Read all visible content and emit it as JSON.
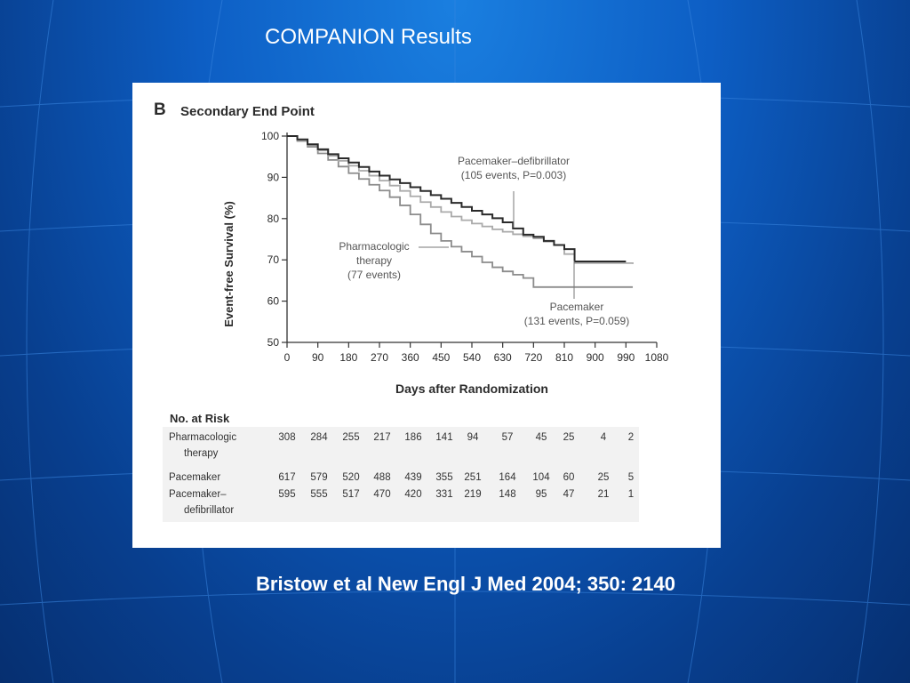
{
  "slide": {
    "title": "COMPANION Results",
    "citation": "Bristow et al New Engl J Med 2004; 350: 2140"
  },
  "colors": {
    "background": "#0d5ec4",
    "grid_lines": "#3a86e0",
    "pacemaker_defibrillator": "#2a2a2a",
    "pacemaker": "#aaaaaa",
    "pharmacologic": "#8c8c8c"
  },
  "chart_data": {
    "type": "line",
    "panel_label": "B",
    "title": "Secondary End Point",
    "xlabel": "Days after Randomization",
    "ylabel": "Event-free Survival (%)",
    "xlim": [
      0,
      1080
    ],
    "ylim": [
      50,
      100
    ],
    "x_ticks": [
      0,
      90,
      180,
      270,
      360,
      450,
      540,
      630,
      720,
      810,
      900,
      990,
      1080
    ],
    "y_ticks": [
      50,
      60,
      70,
      80,
      90,
      100
    ],
    "series": [
      {
        "name": "Pacemaker–defibrillator",
        "color": "#2a2a2a",
        "x": [
          0,
          30,
          60,
          90,
          120,
          150,
          180,
          210,
          240,
          270,
          300,
          330,
          360,
          390,
          420,
          450,
          480,
          510,
          540,
          570,
          600,
          630,
          660,
          690,
          720,
          750,
          780,
          810,
          840,
          870,
          900,
          930,
          960,
          990
        ],
        "y": [
          100,
          99.2,
          98.0,
          96.8,
          95.6,
          94.6,
          93.6,
          92.5,
          91.4,
          90.4,
          89.5,
          88.6,
          87.6,
          86.7,
          85.7,
          84.8,
          83.8,
          82.8,
          81.9,
          81.0,
          80.1,
          79.1,
          77.6,
          76.1,
          75.6,
          74.6,
          73.6,
          72.6,
          69.6,
          69.6,
          69.6,
          69.6,
          69.6,
          69.6
        ]
      },
      {
        "name": "Pacemaker",
        "color": "#aaaaaa",
        "x": [
          0,
          30,
          60,
          90,
          120,
          150,
          180,
          210,
          240,
          270,
          300,
          330,
          360,
          390,
          420,
          450,
          480,
          510,
          540,
          570,
          600,
          630,
          660,
          690,
          720,
          750,
          780,
          810,
          840,
          870,
          900,
          930,
          960,
          990,
          1010
        ],
        "y": [
          100,
          99.0,
          97.8,
          96.5,
          95.2,
          94.0,
          92.8,
          91.6,
          90.4,
          89.2,
          88.0,
          86.7,
          85.4,
          84.0,
          82.8,
          81.6,
          80.5,
          79.6,
          78.8,
          78.1,
          77.4,
          76.8,
          76.2,
          75.7,
          75.2,
          74.4,
          73.6,
          71.4,
          69.2,
          69.2,
          69.2,
          69.2,
          69.2,
          69.2,
          69.0
        ]
      },
      {
        "name": "Pharmacologic therapy",
        "color": "#8c8c8c",
        "x": [
          0,
          30,
          60,
          90,
          120,
          150,
          180,
          210,
          240,
          270,
          300,
          330,
          360,
          390,
          420,
          450,
          480,
          510,
          540,
          570,
          600,
          630,
          660,
          690,
          720,
          750,
          780,
          810,
          840,
          870,
          900,
          930,
          960,
          990,
          1010
        ],
        "y": [
          100,
          98.8,
          97.4,
          95.8,
          94.2,
          92.6,
          91.0,
          89.6,
          88.2,
          86.8,
          85.2,
          83.2,
          81.0,
          78.6,
          76.4,
          74.6,
          73.2,
          72.0,
          70.8,
          69.4,
          68.2,
          67.2,
          66.4,
          65.6,
          63.4,
          63.4,
          63.4,
          63.4,
          63.4,
          63.4,
          63.4,
          63.4,
          63.4,
          63.4,
          63.4
        ]
      }
    ],
    "annotations": [
      {
        "lines": [
          "Pacemaker–defibrillator",
          "(105 events, P=0.003)"
        ]
      },
      {
        "lines": [
          "Pharmacologic",
          "therapy",
          "(77 events)"
        ]
      },
      {
        "lines": [
          "Pacemaker",
          "(131 events, P=0.059)"
        ]
      }
    ],
    "risk_table": {
      "title": "No. at Risk",
      "rows": [
        {
          "label": [
            "Pharmacologic",
            "therapy"
          ],
          "values": [
            "308",
            "284",
            "255",
            "217",
            "186",
            "141",
            "94",
            "57",
            "45",
            "25",
            "4",
            "2"
          ]
        },
        {
          "label": [
            "Pacemaker"
          ],
          "values": [
            "617",
            "579",
            "520",
            "488",
            "439",
            "355",
            "251",
            "164",
            "104",
            "60",
            "25",
            "5"
          ]
        },
        {
          "label": [
            "Pacemaker–",
            "defibrillator"
          ],
          "values": [
            "595",
            "555",
            "517",
            "470",
            "420",
            "331",
            "219",
            "148",
            "95",
            "47",
            "21",
            "1"
          ]
        }
      ]
    }
  }
}
